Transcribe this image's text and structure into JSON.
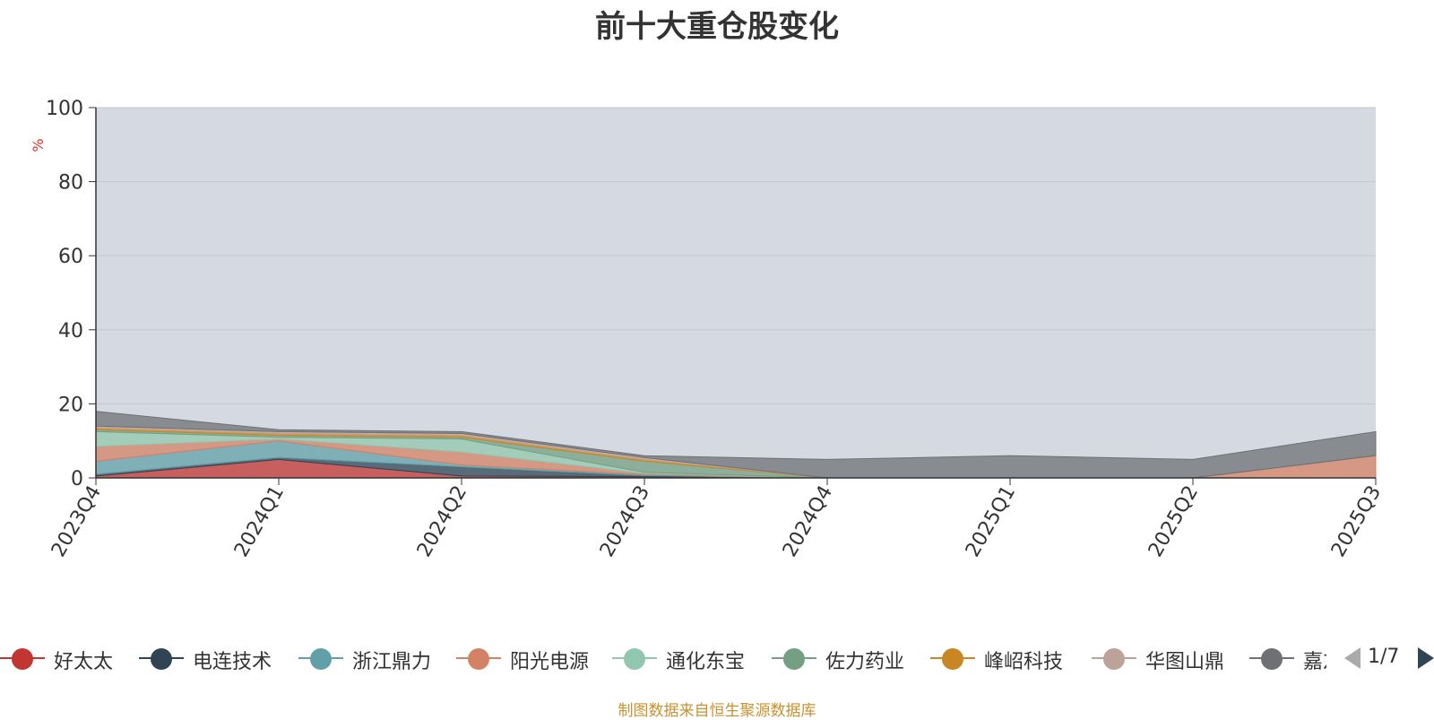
{
  "chart_data": {
    "type": "area",
    "title": "前十大重仓股变化",
    "ylabel": "%",
    "ylim": [
      0,
      100
    ],
    "yticks": [
      0,
      20,
      40,
      60,
      80,
      100
    ],
    "grid": true,
    "stacked": true,
    "categories": [
      "2023Q4",
      "2024Q1",
      "2024Q2",
      "2024Q3",
      "2024Q4",
      "2025Q1",
      "2025Q2",
      "2025Q3"
    ],
    "series": [
      {
        "name": "好太太",
        "color": "#c23531",
        "values": [
          0.5,
          5.0,
          0.5,
          0.3,
          0.0,
          0.0,
          0.0,
          0.0
        ]
      },
      {
        "name": "电连技术",
        "color": "#2f4554",
        "values": [
          0.5,
          0.5,
          2.5,
          0.3,
          0.0,
          0.0,
          0.0,
          0.0
        ]
      },
      {
        "name": "浙江鼎力",
        "color": "#61a0a8",
        "values": [
          3.5,
          4.5,
          0.5,
          0.3,
          0.0,
          0.0,
          0.0,
          0.0
        ]
      },
      {
        "name": "阳光电源",
        "color": "#d48265",
        "values": [
          4.0,
          0.5,
          3.5,
          0.3,
          0.0,
          0.0,
          0.0,
          6.0
        ]
      },
      {
        "name": "通化东宝",
        "color": "#91c7ae",
        "values": [
          4.0,
          0.5,
          3.5,
          0.3,
          0.0,
          0.0,
          0.0,
          0.0
        ]
      },
      {
        "name": "佐力药业",
        "color": "#749f83",
        "values": [
          0.5,
          0.5,
          0.5,
          3.0,
          0.0,
          0.0,
          0.0,
          0.0
        ]
      },
      {
        "name": "峰岹科技",
        "color": "#ca8622",
        "values": [
          0.5,
          0.5,
          0.5,
          0.5,
          0.0,
          0.0,
          0.0,
          0.0
        ]
      },
      {
        "name": "华图山鼎",
        "color": "#bda29a",
        "values": [
          0.5,
          0.5,
          0.5,
          0.5,
          0.0,
          0.0,
          0.0,
          0.0
        ]
      },
      {
        "name": "嘉友国际",
        "color": "#6e7074",
        "values": [
          4.0,
          0.5,
          0.5,
          0.5,
          5.0,
          6.0,
          5.0,
          6.5
        ]
      }
    ]
  },
  "legend": {
    "items": [
      {
        "label": "好太太",
        "color": "#c23531"
      },
      {
        "label": "电连技术",
        "color": "#2f4554"
      },
      {
        "label": "浙江鼎力",
        "color": "#61a0a8"
      },
      {
        "label": "阳光电源",
        "color": "#d48265"
      },
      {
        "label": "通化东宝",
        "color": "#91c7ae"
      },
      {
        "label": "佐力药业",
        "color": "#749f83"
      },
      {
        "label": "峰岹科技",
        "color": "#ca8622"
      },
      {
        "label": "华图山鼎",
        "color": "#bda29a"
      },
      {
        "label": "嘉友国际",
        "color": "#6e7074"
      }
    ],
    "page": "1/7"
  },
  "footer": "制图数据来自恒生聚源数据库",
  "colors": {
    "plot_background": "#d5dae2",
    "grid": "#c3c8d0",
    "axis": "#333333",
    "ylabel": "#e03030"
  }
}
